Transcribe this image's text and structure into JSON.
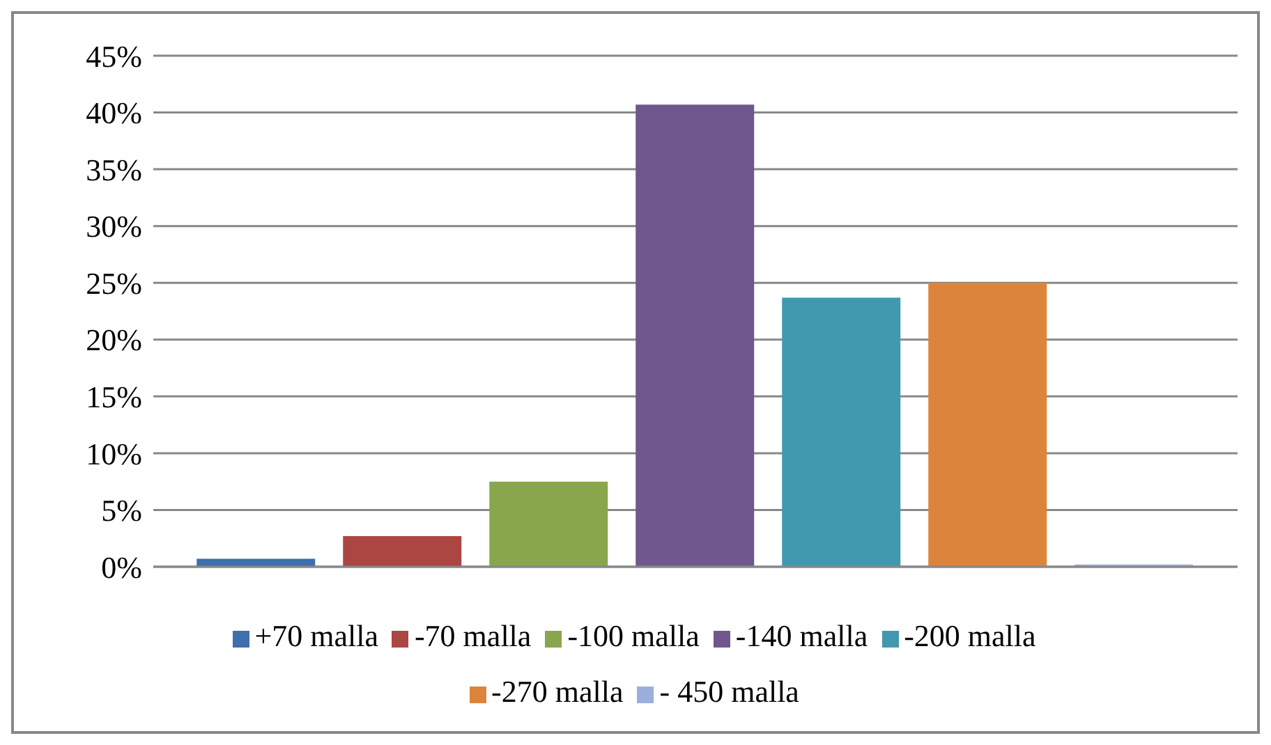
{
  "chart_data": {
    "type": "bar",
    "categories": [
      null
    ],
    "series": [
      {
        "name": "+70 malla",
        "color": "#3f6fad",
        "values": [
          0.7
        ]
      },
      {
        "name": "-70 malla",
        "color": "#ab4642",
        "values": [
          2.7
        ]
      },
      {
        "name": "-100 malla",
        "color": "#89a64d",
        "values": [
          7.5
        ]
      },
      {
        "name": "-140 malla",
        "color": "#6f578e",
        "values": [
          40.7
        ]
      },
      {
        "name": "-200 malla",
        "color": "#4199b0",
        "values": [
          23.7
        ]
      },
      {
        "name": "-270 malla",
        "color": "#dd843c",
        "values": [
          25.0
        ]
      },
      {
        "name": "- 450 malla",
        "color": "#9aafdc",
        "values": [
          0.2
        ]
      }
    ],
    "ylim": [
      0,
      45
    ],
    "yticks": [
      {
        "value": 0,
        "label": "0%"
      },
      {
        "value": 5,
        "label": "5%"
      },
      {
        "value": 10,
        "label": "10%"
      },
      {
        "value": 15,
        "label": "15%"
      },
      {
        "value": 20,
        "label": "20%"
      },
      {
        "value": 25,
        "label": "25%"
      },
      {
        "value": 30,
        "label": "30%"
      },
      {
        "value": 35,
        "label": "35%"
      },
      {
        "value": 40,
        "label": "40%"
      },
      {
        "value": 45,
        "label": "45%"
      }
    ],
    "grid": "y",
    "legend": "bottom"
  }
}
